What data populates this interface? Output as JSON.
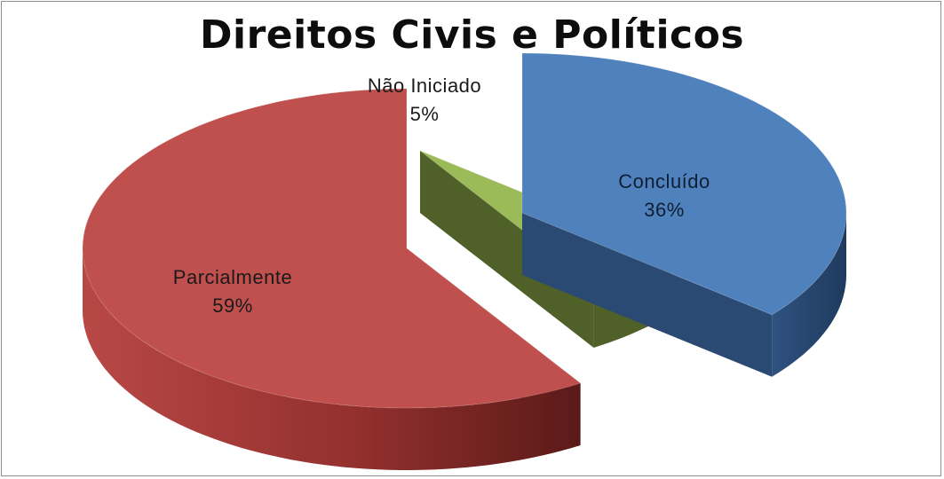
{
  "chart_data": {
    "type": "pie",
    "title": "Direitos Civis e Políticos",
    "style": "3d-exploded",
    "slices": [
      {
        "label": "Concluído",
        "value": 36,
        "value_label": "36%",
        "color": "#4F81BD",
        "side_color": "#2A4A73"
      },
      {
        "label": "Não Iniciado",
        "value": 5,
        "value_label": "5%",
        "color": "#9BBB59",
        "side_color": "#4F6128"
      },
      {
        "label": "Parcialmente",
        "value": 59,
        "value_label": "59%",
        "color": "#C0504D",
        "side_color": "#7A2624"
      }
    ],
    "legend": "none"
  }
}
